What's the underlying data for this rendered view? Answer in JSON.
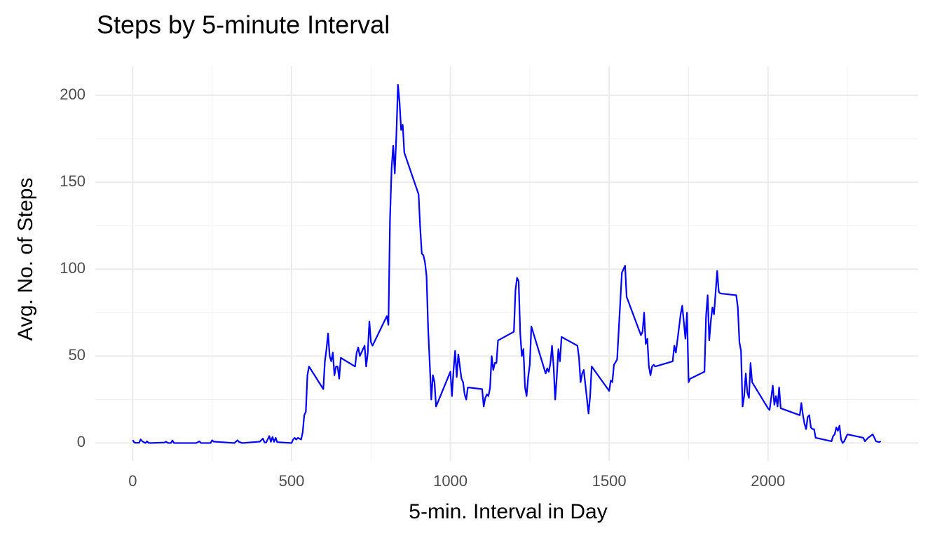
{
  "chart_data": {
    "type": "line",
    "title": "Steps by 5-minute Interval",
    "x_label": "5-min. Interval in Day",
    "y_label": "Avg. No. of Steps",
    "color": "#0000ff",
    "x": [
      0,
      5,
      10,
      15,
      20,
      25,
      30,
      35,
      40,
      45,
      50,
      55,
      100,
      105,
      110,
      115,
      120,
      125,
      130,
      200,
      210,
      215,
      245,
      250,
      255,
      320,
      330,
      335,
      345,
      400,
      410,
      415,
      420,
      430,
      435,
      440,
      445,
      450,
      455,
      500,
      505,
      510,
      515,
      520,
      530,
      535,
      540,
      545,
      550,
      555,
      600,
      605,
      610,
      615,
      620,
      625,
      630,
      635,
      640,
      645,
      650,
      655,
      700,
      705,
      710,
      715,
      720,
      730,
      735,
      740,
      745,
      750,
      755,
      800,
      805,
      810,
      815,
      820,
      825,
      830,
      835,
      840,
      845,
      850,
      855,
      900,
      905,
      910,
      915,
      920,
      925,
      930,
      935,
      940,
      945,
      950,
      955,
      1000,
      1005,
      1010,
      1015,
      1020,
      1025,
      1030,
      1035,
      1040,
      1045,
      1050,
      1055,
      1100,
      1105,
      1110,
      1115,
      1120,
      1125,
      1130,
      1135,
      1140,
      1145,
      1150,
      1200,
      1205,
      1210,
      1215,
      1220,
      1225,
      1230,
      1235,
      1240,
      1245,
      1250,
      1255,
      1300,
      1305,
      1310,
      1315,
      1320,
      1325,
      1330,
      1335,
      1340,
      1345,
      1350,
      1400,
      1405,
      1410,
      1415,
      1420,
      1435,
      1440,
      1445,
      1500,
      1505,
      1510,
      1515,
      1525,
      1540,
      1550,
      1555,
      1600,
      1605,
      1610,
      1615,
      1620,
      1625,
      1630,
      1635,
      1640,
      1645,
      1700,
      1705,
      1710,
      1725,
      1730,
      1740,
      1745,
      1750,
      1755,
      1800,
      1805,
      1810,
      1815,
      1820,
      1825,
      1830,
      1840,
      1845,
      1850,
      1900,
      1905,
      1910,
      1915,
      1920,
      1925,
      1930,
      1935,
      1940,
      1945,
      1950,
      2000,
      2005,
      2015,
      2020,
      2025,
      2030,
      2035,
      2040,
      2100,
      2105,
      2110,
      2115,
      2120,
      2125,
      2130,
      2135,
      2140,
      2145,
      2150,
      2200,
      2205,
      2210,
      2215,
      2220,
      2225,
      2230,
      2235,
      2240,
      2250,
      2300,
      2305,
      2310,
      2315,
      2330,
      2340,
      2350,
      2355
    ],
    "values": [
      1.7,
      0.3,
      0.1,
      0.2,
      0.1,
      2.1,
      1,
      0.5,
      0,
      1,
      0.1,
      0,
      0.3,
      0.8,
      0.1,
      0,
      0,
      1.5,
      0,
      0,
      1,
      0,
      0,
      1.6,
      0.8,
      0,
      1.6,
      0.6,
      0,
      0.8,
      2.6,
      0.3,
      0.3,
      4,
      0.7,
      3.5,
      0.7,
      3,
      0.5,
      0,
      2,
      3,
      2,
      3,
      2,
      6,
      16,
      18,
      39,
      44,
      31,
      47,
      54,
      63,
      50,
      47,
      52,
      39,
      44,
      44,
      37,
      49,
      44,
      52,
      55,
      50,
      52,
      56,
      44,
      52,
      70,
      58,
      56,
      73,
      68,
      129,
      158,
      171,
      155,
      177,
      206,
      196,
      180,
      183,
      167,
      143,
      124,
      109,
      108,
      104,
      96,
      66,
      46,
      25,
      39,
      35,
      21,
      41,
      27,
      42,
      53,
      38,
      51,
      44,
      37,
      35,
      28,
      25,
      32,
      31,
      21,
      26,
      28,
      27,
      32,
      50,
      42,
      46,
      46,
      59,
      64,
      88,
      95,
      93,
      63,
      50,
      54,
      32,
      27,
      38,
      45,
      67,
      40,
      43,
      41,
      46,
      56,
      44,
      25,
      38,
      54,
      47,
      61,
      56,
      49,
      35,
      40,
      42,
      17,
      27,
      44,
      30,
      36,
      35,
      45,
      48,
      98,
      102,
      84,
      62,
      64,
      75,
      57,
      60,
      44,
      39,
      44,
      45,
      44,
      47,
      56,
      52,
      74,
      79,
      60,
      75,
      35,
      37,
      41,
      73,
      85,
      59,
      70,
      78,
      74,
      99,
      87,
      86,
      85,
      78,
      58,
      53,
      21,
      27,
      40,
      29,
      26,
      46,
      35,
      20,
      19,
      33,
      22,
      27,
      21,
      32,
      20,
      16,
      23,
      16,
      11,
      8,
      15,
      16,
      9,
      8,
      8,
      3,
      1,
      4,
      5,
      9,
      7,
      10,
      2,
      0,
      1,
      5,
      3,
      1,
      2,
      3,
      5,
      1,
      0.5,
      1
    ],
    "xlim": [
      -117.75,
      2472.75
    ],
    "ylim": [
      -10.3,
      216.5
    ],
    "xticks": [
      0,
      500,
      1000,
      1500,
      2000
    ],
    "yticks": [
      0,
      50,
      100,
      150,
      200
    ],
    "x_minor_ticks": [
      250,
      750,
      1250,
      1750,
      2250
    ],
    "y_minor_ticks": [
      25,
      75,
      125,
      175
    ],
    "grid": true
  }
}
